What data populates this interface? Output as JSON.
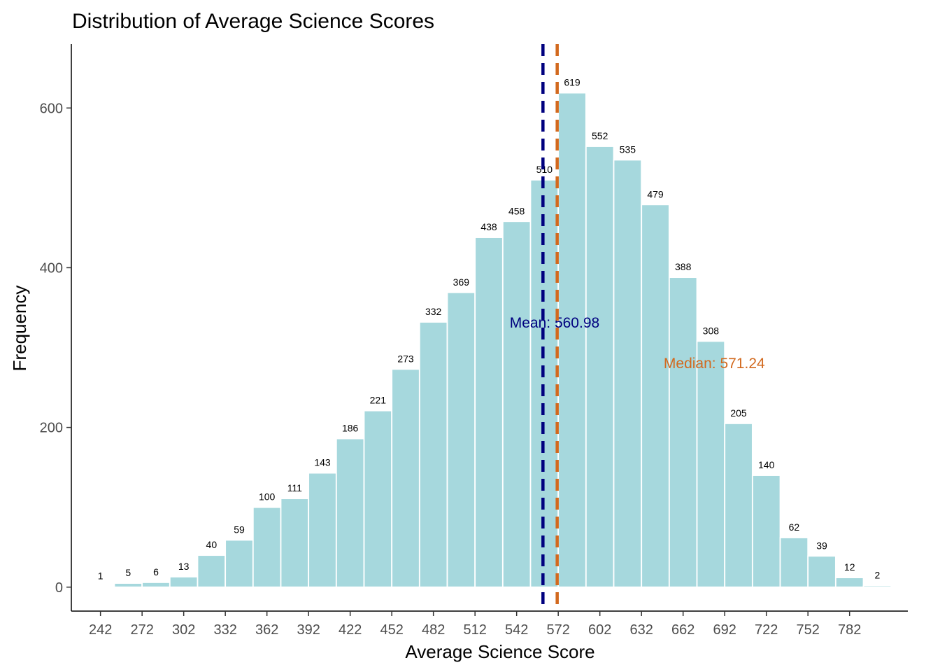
{
  "chart_data": {
    "type": "bar",
    "title": "Distribution of Average Science Scores",
    "xlabel": "Average Science Score",
    "ylabel": "Frequency",
    "bins": [
      {
        "x": 242,
        "count": 1
      },
      {
        "x": 262,
        "count": 5
      },
      {
        "x": 282,
        "count": 6
      },
      {
        "x": 302,
        "count": 13
      },
      {
        "x": 322,
        "count": 40
      },
      {
        "x": 342,
        "count": 59
      },
      {
        "x": 362,
        "count": 100
      },
      {
        "x": 382,
        "count": 111
      },
      {
        "x": 402,
        "count": 143
      },
      {
        "x": 422,
        "count": 186
      },
      {
        "x": 442,
        "count": 221
      },
      {
        "x": 462,
        "count": 273
      },
      {
        "x": 482,
        "count": 332
      },
      {
        "x": 502,
        "count": 369
      },
      {
        "x": 522,
        "count": 438
      },
      {
        "x": 542,
        "count": 458
      },
      {
        "x": 562,
        "count": 510
      },
      {
        "x": 582,
        "count": 619
      },
      {
        "x": 602,
        "count": 552
      },
      {
        "x": 622,
        "count": 535
      },
      {
        "x": 642,
        "count": 479
      },
      {
        "x": 662,
        "count": 388
      },
      {
        "x": 682,
        "count": 308
      },
      {
        "x": 702,
        "count": 205
      },
      {
        "x": 722,
        "count": 140
      },
      {
        "x": 742,
        "count": 62
      },
      {
        "x": 762,
        "count": 39
      },
      {
        "x": 782,
        "count": 12
      },
      {
        "x": 802,
        "count": 2
      }
    ],
    "bin_width": 20,
    "x_ticks": [
      242,
      272,
      302,
      332,
      362,
      392,
      422,
      452,
      482,
      512,
      542,
      572,
      602,
      632,
      662,
      692,
      722,
      752,
      782
    ],
    "y_ticks": [
      0,
      200,
      400,
      600
    ],
    "xlim": [
      221,
      824
    ],
    "ylim": [
      -30,
      680
    ],
    "mean": {
      "value": 560.98,
      "label": "Mean: 560.98",
      "color": "#00007F",
      "label_x": 537,
      "label_y": 325
    },
    "median": {
      "value": 571.24,
      "label": "Median: 571.24",
      "color": "#D2691E",
      "label_x": 648,
      "label_y": 274
    },
    "bar_fill": "#A6D8DD",
    "bar_stroke": "#FFFFFF",
    "grid": false,
    "legend": "none"
  }
}
